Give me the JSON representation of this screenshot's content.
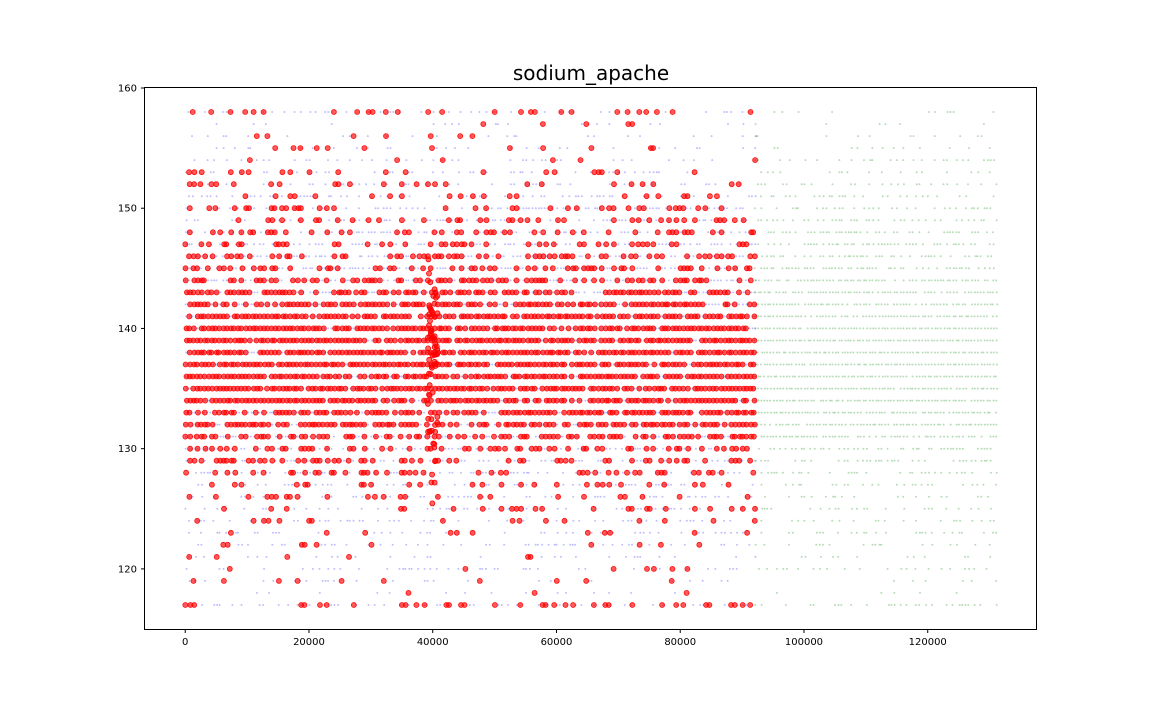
{
  "chart_data": {
    "type": "scatter",
    "title": "sodium_apache",
    "xlabel": "",
    "ylabel": "",
    "xlim": [
      -6500,
      137500
    ],
    "ylim": [
      115,
      160
    ],
    "grid": false,
    "x_ticks": [
      0,
      20000,
      40000,
      60000,
      80000,
      100000,
      120000
    ],
    "x_tick_labels": [
      "0",
      "20000",
      "40000",
      "60000",
      "80000",
      "100000",
      "120000"
    ],
    "y_ticks": [
      120,
      130,
      140,
      150,
      160
    ],
    "y_tick_labels": [
      "120",
      "130",
      "140",
      "150",
      "160"
    ],
    "y_levels": [
      117,
      118,
      119,
      120,
      121,
      122,
      123,
      124,
      125,
      126,
      127,
      128,
      129,
      130,
      131,
      132,
      133,
      134,
      135,
      136,
      137,
      138,
      139,
      140,
      141,
      142,
      143,
      144,
      145,
      146,
      147,
      148,
      149,
      150,
      151,
      152,
      153,
      154,
      155,
      156,
      157,
      158
    ],
    "series": [
      {
        "color": "#0000ff",
        "marker_size": 2,
        "opacity": 0.25,
        "x_range": [
          0,
          92000
        ],
        "densities": [
          0.35,
          0.08,
          0.15,
          0.18,
          0.18,
          0.22,
          0.28,
          0.28,
          0.3,
          0.32,
          0.35,
          0.4,
          0.45,
          0.55,
          0.8,
          0.88,
          0.92,
          0.97,
          0.97,
          0.99,
          0.99,
          0.99,
          0.99,
          0.97,
          0.95,
          0.9,
          0.85,
          0.8,
          0.7,
          0.6,
          0.55,
          0.48,
          0.45,
          0.4,
          0.3,
          0.28,
          0.22,
          0.2,
          0.15,
          0.12,
          0.08,
          0.2
        ]
      },
      {
        "color": "#008000",
        "marker_size": 2,
        "opacity": 0.28,
        "x_range": [
          92000,
          131000
        ],
        "densities": [
          0.35,
          0.08,
          0.15,
          0.18,
          0.18,
          0.22,
          0.28,
          0.28,
          0.3,
          0.32,
          0.35,
          0.4,
          0.45,
          0.55,
          0.8,
          0.88,
          0.92,
          0.97,
          0.97,
          0.99,
          0.99,
          0.99,
          0.99,
          0.97,
          0.95,
          0.9,
          0.85,
          0.8,
          0.7,
          0.6,
          0.55,
          0.48,
          0.45,
          0.4,
          0.3,
          0.28,
          0.22,
          0.2,
          0.15,
          0.12,
          0.08,
          0.2
        ]
      },
      {
        "color": "#ff0000",
        "marker_size": 5,
        "opacity": 0.65,
        "x_range": [
          0,
          92000
        ],
        "densities": [
          0.22,
          0.02,
          0.06,
          0.05,
          0.06,
          0.09,
          0.12,
          0.12,
          0.15,
          0.18,
          0.22,
          0.28,
          0.32,
          0.38,
          0.6,
          0.72,
          0.78,
          0.85,
          0.88,
          0.9,
          0.92,
          0.92,
          0.9,
          0.88,
          0.85,
          0.75,
          0.65,
          0.55,
          0.45,
          0.38,
          0.32,
          0.28,
          0.22,
          0.2,
          0.15,
          0.12,
          0.1,
          0.08,
          0.06,
          0.05,
          0.03,
          0.2
        ]
      }
    ],
    "cluster": {
      "color": "#ff0000",
      "x_center": 40000,
      "y_center": 137,
      "y_spread": 6
    }
  }
}
